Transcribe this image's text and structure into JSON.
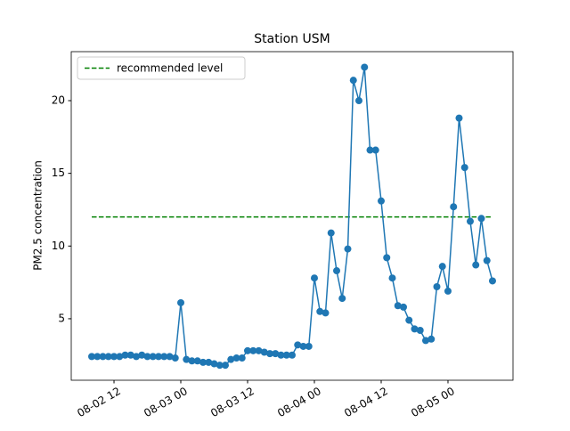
{
  "chart_data": {
    "type": "line",
    "title": "Station USM",
    "ylabel": "PM2.5 concentration",
    "x": [
      "08-02 08",
      "08-02 09",
      "08-02 10",
      "08-02 11",
      "08-02 12",
      "08-02 13",
      "08-02 14",
      "08-02 15",
      "08-02 16",
      "08-02 17",
      "08-02 18",
      "08-02 19",
      "08-02 20",
      "08-02 21",
      "08-02 22",
      "08-02 23",
      "08-03 00",
      "08-03 01",
      "08-03 02",
      "08-03 03",
      "08-03 04",
      "08-03 05",
      "08-03 06",
      "08-03 07",
      "08-03 08",
      "08-03 09",
      "08-03 10",
      "08-03 11",
      "08-03 12",
      "08-03 13",
      "08-03 14",
      "08-03 15",
      "08-03 16",
      "08-03 17",
      "08-03 18",
      "08-03 19",
      "08-03 20",
      "08-03 21",
      "08-03 22",
      "08-03 23",
      "08-04 00",
      "08-04 01",
      "08-04 02",
      "08-04 03",
      "08-04 04",
      "08-04 05",
      "08-04 06",
      "08-04 07",
      "08-04 08",
      "08-04 09",
      "08-04 10",
      "08-04 11",
      "08-04 12",
      "08-04 13",
      "08-04 14",
      "08-04 15",
      "08-04 16",
      "08-04 17",
      "08-04 18",
      "08-04 19",
      "08-04 20",
      "08-04 21",
      "08-04 22",
      "08-04 23",
      "08-05 00",
      "08-05 01",
      "08-05 02",
      "08-05 03",
      "08-05 04",
      "08-05 05",
      "08-05 06",
      "08-05 07",
      "08-05 08"
    ],
    "series": [
      {
        "name": "PM2.5",
        "color": "#1f77b4",
        "values": [
          2.4,
          2.4,
          2.4,
          2.4,
          2.4,
          2.4,
          2.5,
          2.5,
          2.4,
          2.5,
          2.4,
          2.4,
          2.4,
          2.4,
          2.4,
          2.3,
          6.1,
          2.2,
          2.1,
          2.1,
          2.0,
          2.0,
          1.9,
          1.8,
          1.8,
          2.2,
          2.3,
          2.3,
          2.8,
          2.8,
          2.8,
          2.7,
          2.6,
          2.6,
          2.5,
          2.5,
          2.5,
          3.2,
          3.1,
          3.1,
          7.8,
          5.5,
          5.4,
          10.9,
          8.3,
          6.4,
          9.8,
          21.4,
          20.0,
          22.3,
          16.6,
          16.6,
          13.1,
          9.2,
          7.8,
          5.9,
          5.8,
          4.9,
          4.3,
          4.2,
          3.5,
          3.6,
          7.2,
          8.6,
          6.9,
          12.7,
          18.8,
          15.4,
          11.7,
          8.7,
          11.9,
          9.0,
          7.6
        ]
      }
    ],
    "hline": {
      "name": "recommended level",
      "value": 12,
      "color": "green"
    },
    "xlim": [
      "08-02 04:19",
      "08-05 11:41"
    ],
    "xticks": [
      "08-02 12",
      "08-03 00",
      "08-03 12",
      "08-04 00",
      "08-04 12",
      "08-05 00"
    ],
    "ylim": [
      0.77,
      23.37
    ],
    "yticks": [
      5,
      10,
      15,
      20
    ],
    "legend": "upper left"
  }
}
